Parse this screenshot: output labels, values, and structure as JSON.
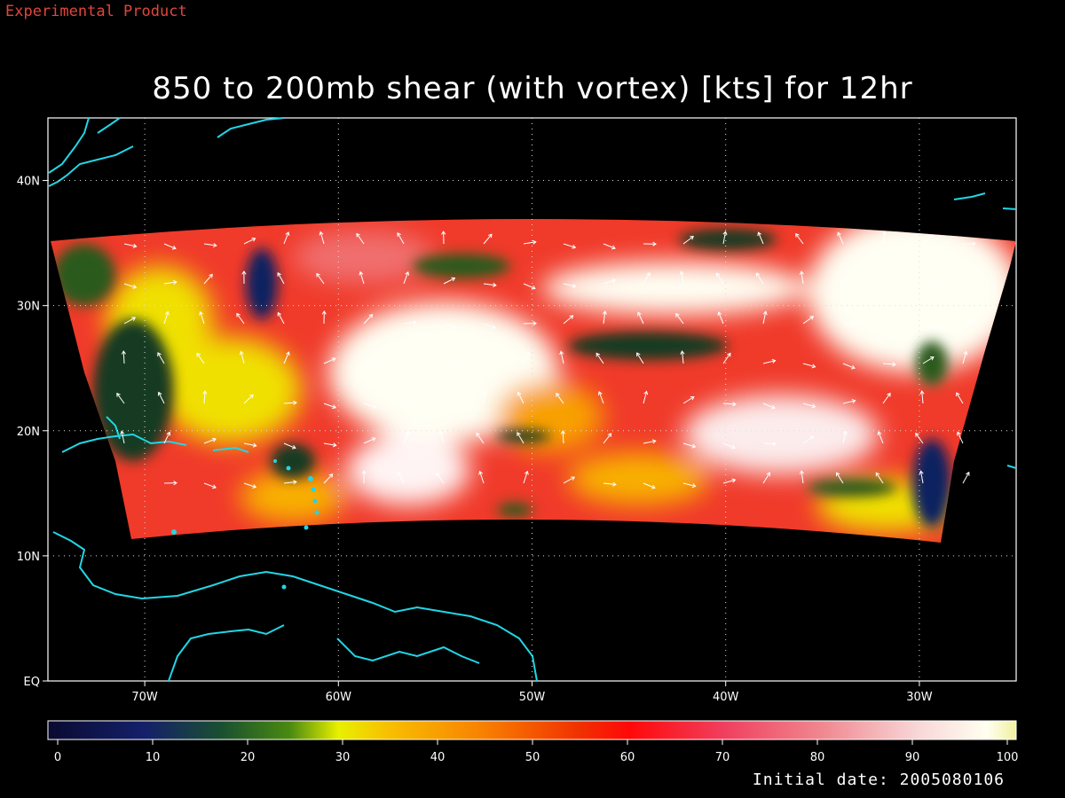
{
  "header": {
    "disclaimer": "Experimental Product"
  },
  "map": {
    "title": "850 to 200mb shear (with vortex) [kts] for 12hr",
    "lat_labels": [
      "40N",
      "30N",
      "20N",
      "10N",
      "EQ"
    ],
    "lon_labels": [
      "70W",
      "60W",
      "50W",
      "40W",
      "30W"
    ],
    "lat_range": [
      0,
      45
    ],
    "lon_range": [
      -75,
      -25
    ],
    "grid": "dotted",
    "coastline_color": "#22d6e6"
  },
  "colorbar": {
    "labels": [
      "0",
      "10",
      "20",
      "30",
      "40",
      "50",
      "60",
      "70",
      "80",
      "90",
      "100"
    ],
    "range": [
      0,
      100
    ],
    "colors": [
      "#0a0a4a",
      "#1a2a80",
      "#1a5a2a",
      "#4a8a1a",
      "#f0f000",
      "#f8a000",
      "#f06000",
      "#ff1010",
      "#f05a6a",
      "#f8c8c8",
      "#fffff0"
    ]
  },
  "footer": {
    "initial_date": "Initial date: 2005080106"
  }
}
